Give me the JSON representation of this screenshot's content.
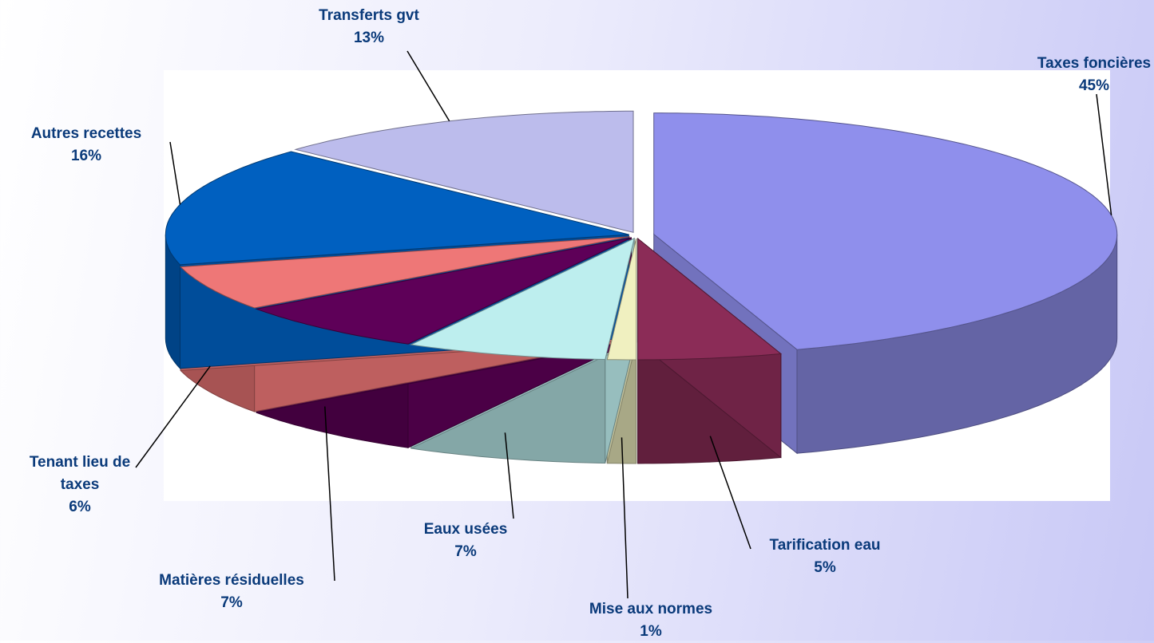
{
  "chart_data": {
    "type": "pie",
    "categories": [
      "Taxes foncières",
      "Tarification eau",
      "Mise aux normes",
      "Eaux usées",
      "Matières résiduelles",
      "Tenant lieu de taxes",
      "Autres recettes",
      "Transferts gvt"
    ],
    "values": [
      45,
      5,
      1,
      7,
      7,
      6,
      16,
      13
    ],
    "value_labels": [
      "45%",
      "5%",
      "1%",
      "7%",
      "7%",
      "6%",
      "16%",
      "13%"
    ],
    "colors": [
      "#8f8fec",
      "#8b2c57",
      "#f0f0c0",
      "#bdeeee",
      "#5e0058",
      "#ee7777",
      "#0060c0",
      "#bcbcec"
    ]
  }
}
